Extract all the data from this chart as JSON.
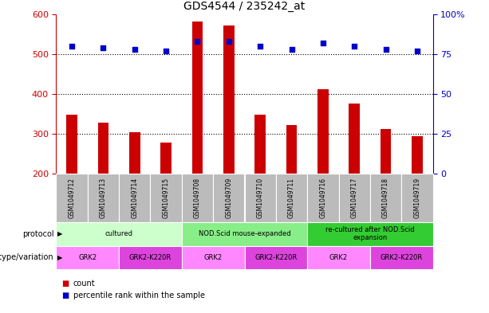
{
  "title": "GDS4544 / 235242_at",
  "samples": [
    "GSM1049712",
    "GSM1049713",
    "GSM1049714",
    "GSM1049715",
    "GSM1049708",
    "GSM1049709",
    "GSM1049710",
    "GSM1049711",
    "GSM1049716",
    "GSM1049717",
    "GSM1049718",
    "GSM1049719"
  ],
  "counts": [
    348,
    328,
    304,
    278,
    582,
    572,
    348,
    322,
    412,
    375,
    312,
    294
  ],
  "percentiles": [
    80,
    79,
    78,
    77,
    83,
    83,
    80,
    78,
    82,
    80,
    78,
    77
  ],
  "ymin": 200,
  "ymax": 600,
  "yticks": [
    200,
    300,
    400,
    500,
    600
  ],
  "y2ticks": [
    0,
    25,
    50,
    75,
    100
  ],
  "y2labels": [
    "0",
    "25",
    "50",
    "75",
    "100%"
  ],
  "bar_color": "#cc0000",
  "dot_color": "#0000cc",
  "bar_bottom": 200,
  "protocol_groups": [
    {
      "label": "cultured",
      "start": 0,
      "end": 3,
      "color": "#ccffcc"
    },
    {
      "label": "NOD.Scid mouse-expanded",
      "start": 4,
      "end": 7,
      "color": "#88ee88"
    },
    {
      "label": "re-cultured after NOD.Scid\nexpansion",
      "start": 8,
      "end": 11,
      "color": "#33cc33"
    }
  ],
  "genotype_groups": [
    {
      "label": "GRK2",
      "start": 0,
      "end": 1,
      "color": "#ff88ff"
    },
    {
      "label": "GRK2-K220R",
      "start": 2,
      "end": 3,
      "color": "#dd44dd"
    },
    {
      "label": "GRK2",
      "start": 4,
      "end": 5,
      "color": "#ff88ff"
    },
    {
      "label": "GRK2-K220R",
      "start": 6,
      "end": 7,
      "color": "#dd44dd"
    },
    {
      "label": "GRK2",
      "start": 8,
      "end": 9,
      "color": "#ff88ff"
    },
    {
      "label": "GRK2-K220R",
      "start": 10,
      "end": 11,
      "color": "#dd44dd"
    }
  ],
  "tick_color_left": "#cc0000",
  "tick_color_right": "#0000cc",
  "sample_bg_color": "#bbbbbb"
}
